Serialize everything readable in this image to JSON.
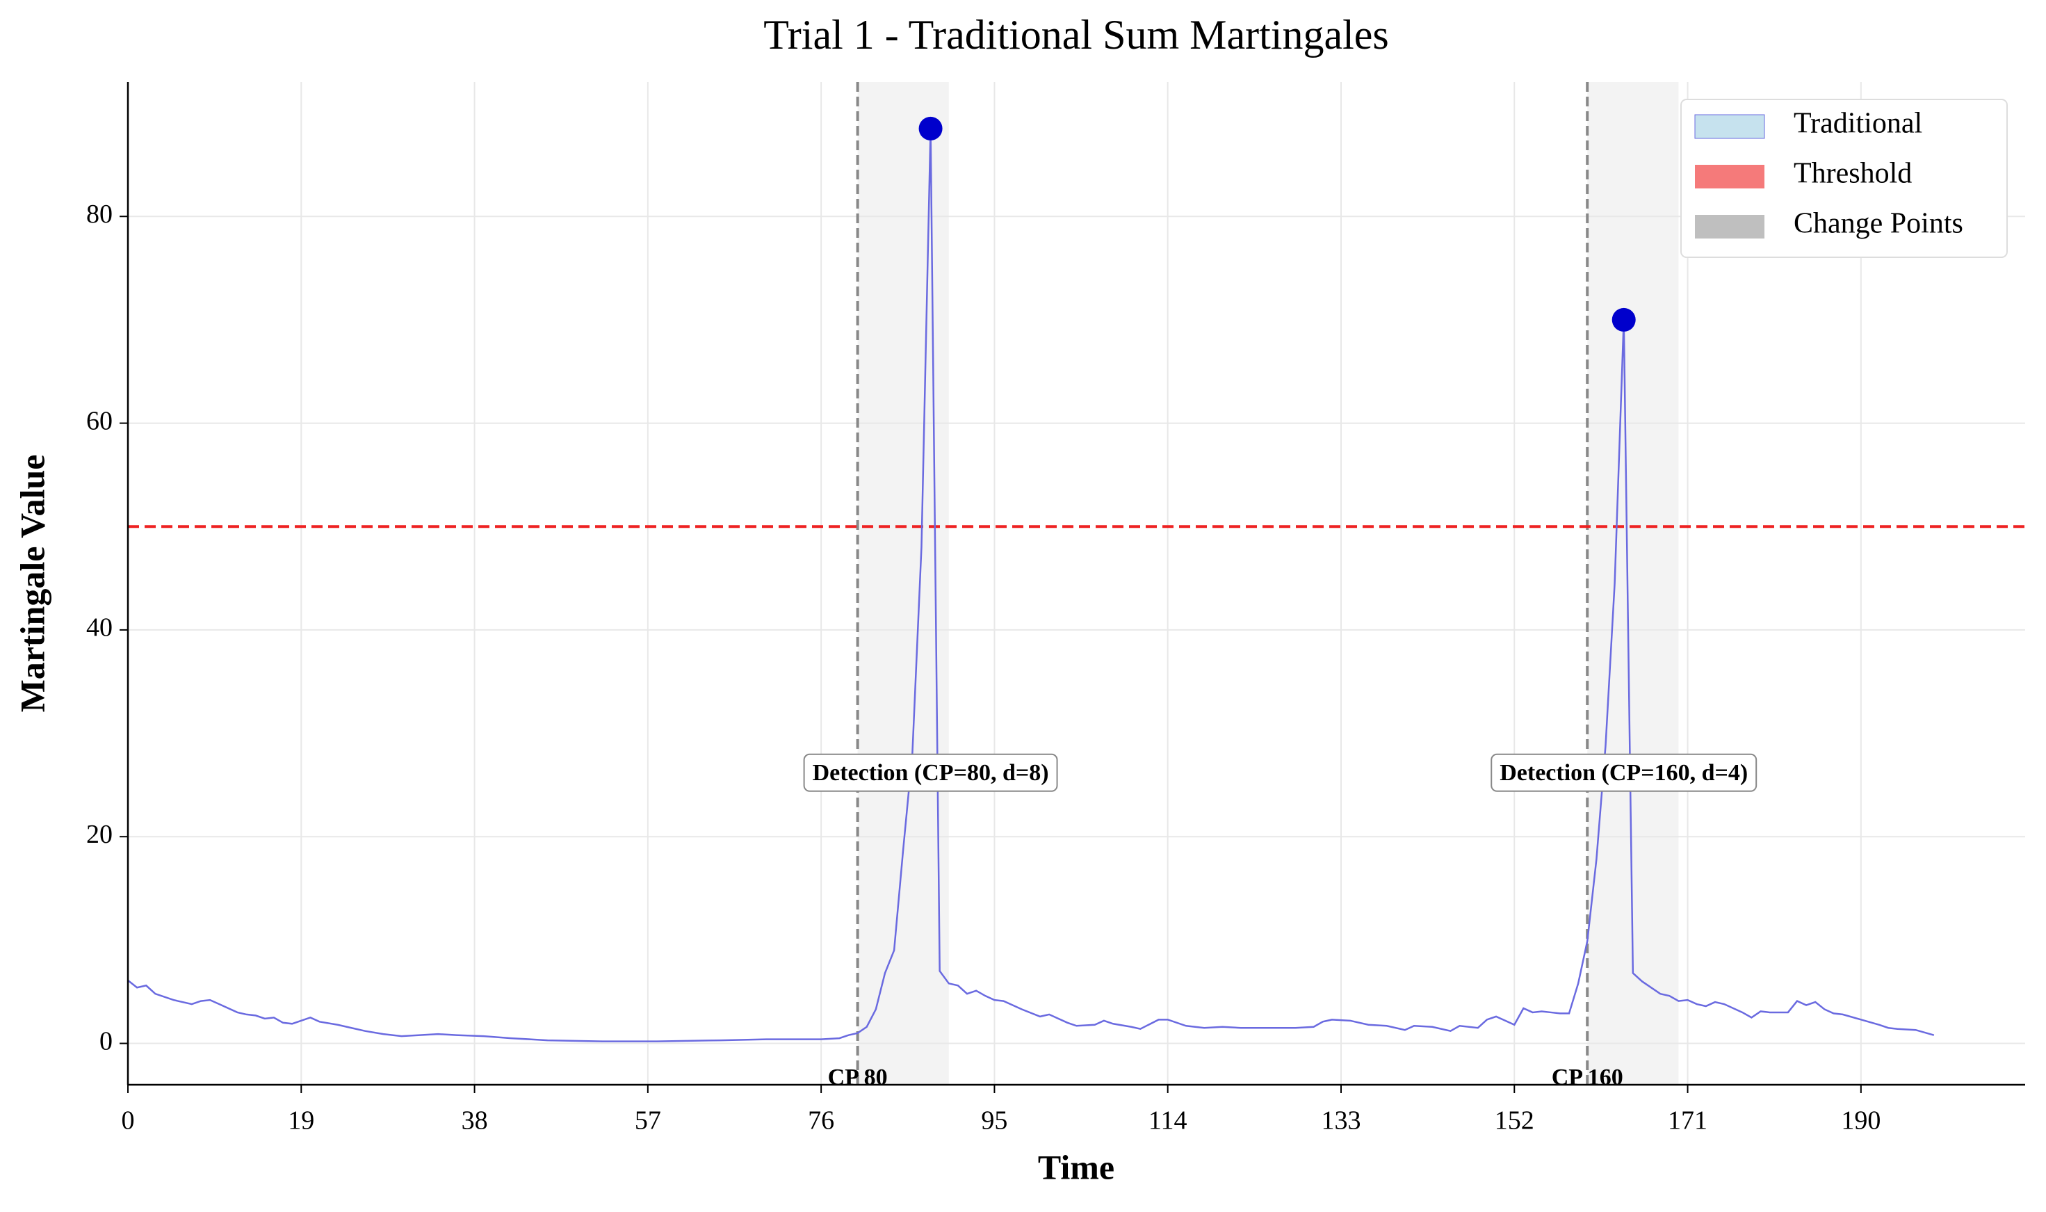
{
  "chart_data": {
    "type": "line",
    "title": "Trial 1 - Traditional Sum Martingales",
    "x_label": "Time",
    "y_label": "Martingale Value",
    "x": [
      0,
      1,
      2,
      3,
      5,
      7,
      8,
      9,
      10,
      12,
      13,
      14,
      15,
      16,
      17,
      18,
      20,
      21,
      23,
      26,
      28,
      30,
      32,
      34,
      36,
      39,
      42,
      46,
      52,
      58,
      65,
      70,
      74,
      76,
      78,
      79,
      80,
      81,
      82,
      83,
      84,
      85,
      86,
      87,
      88,
      89,
      90,
      91,
      92,
      93,
      94,
      95,
      96,
      98,
      100,
      101,
      103,
      104,
      106,
      107,
      108,
      110,
      111,
      113,
      114,
      116,
      118,
      120,
      122,
      125,
      128,
      130,
      131,
      132,
      134,
      136,
      138,
      140,
      141,
      143,
      145,
      146,
      148,
      149,
      150,
      152,
      153,
      154,
      155,
      156,
      157,
      158,
      159,
      160,
      161,
      162,
      163,
      164,
      165,
      166,
      168,
      169,
      170,
      171,
      172,
      173,
      174,
      175,
      177,
      178,
      179,
      180,
      181,
      182,
      183,
      184,
      185,
      186,
      187,
      188,
      190,
      192,
      193,
      194,
      196,
      198
    ],
    "series": [
      {
        "name": "Traditional",
        "color": "#6a6ae0",
        "legend_color": "#c6e2ee",
        "values": [
          6.1,
          5.4,
          5.6,
          4.8,
          4.2,
          3.8,
          4.1,
          4.2,
          3.8,
          3.0,
          2.8,
          2.7,
          2.4,
          2.5,
          2.0,
          1.9,
          2.5,
          2.1,
          1.8,
          1.2,
          0.9,
          0.7,
          0.8,
          0.9,
          0.8,
          0.7,
          0.5,
          0.3,
          0.2,
          0.2,
          0.3,
          0.4,
          0.4,
          0.4,
          0.5,
          0.8,
          1.0,
          1.6,
          3.3,
          6.8,
          9.0,
          18.8,
          28,
          48,
          88.5,
          7.0,
          5.8,
          5.6,
          4.8,
          5.1,
          4.6,
          4.2,
          4.1,
          3.3,
          2.6,
          2.8,
          2.0,
          1.7,
          1.8,
          2.2,
          1.9,
          1.6,
          1.4,
          2.3,
          2.3,
          1.7,
          1.5,
          1.6,
          1.5,
          1.5,
          1.5,
          1.6,
          2.1,
          2.3,
          2.2,
          1.8,
          1.7,
          1.3,
          1.7,
          1.6,
          1.2,
          1.7,
          1.5,
          2.3,
          2.6,
          1.8,
          3.4,
          3.0,
          3.1,
          3.0,
          2.9,
          2.9,
          5.8,
          9.9,
          17.8,
          28.8,
          44.5,
          70,
          6.8,
          6.0,
          4.8,
          4.6,
          4.1,
          4.2,
          3.8,
          3.6,
          4.0,
          3.8,
          3.0,
          2.5,
          3.1,
          3.0,
          3.0,
          3.0,
          4.1,
          3.7,
          4.0,
          3.3,
          2.9,
          2.8,
          2.3,
          1.8,
          1.5,
          1.4,
          1.3,
          0.8
        ]
      }
    ],
    "threshold": {
      "name": "Threshold",
      "value": 50,
      "color": "#ee2222"
    },
    "change_points": {
      "name": "Change Points",
      "color": "#bfbfbf",
      "items": [
        {
          "x": 80,
          "shade_to": 90,
          "label": "CP 80"
        },
        {
          "x": 160,
          "shade_to": 170,
          "label": "CP 160"
        }
      ]
    },
    "detections": [
      {
        "x": 88,
        "value": 88.5,
        "label": "Detection (CP=80, d=8)"
      },
      {
        "x": 164,
        "value": 70,
        "label": "Detection (CP=160, d=4)"
      }
    ],
    "detection_color": "#0000cc",
    "xlim": [
      0,
      208
    ],
    "xticks": [
      0,
      19,
      38,
      57,
      76,
      95,
      114,
      133,
      152,
      171,
      190
    ],
    "ylim": [
      -4,
      93
    ],
    "yticks": [
      0,
      20,
      40,
      60,
      80
    ],
    "grid": true,
    "legend": "upper right"
  }
}
